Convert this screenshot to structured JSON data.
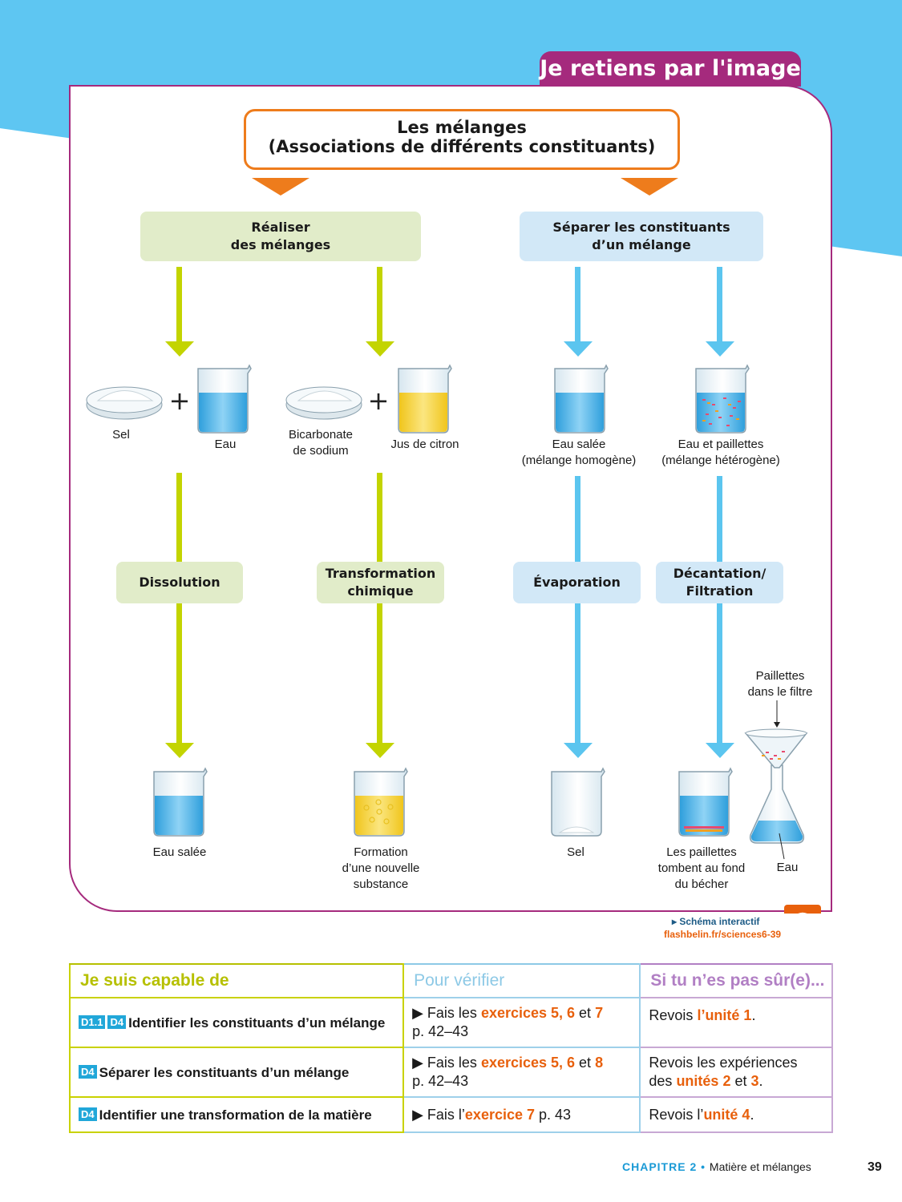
{
  "banner": "Je retiens par l'image",
  "title": {
    "line1": "Les mélanges",
    "line2": "(Associations de différents constituants)"
  },
  "left_header": "Réaliser\ndes mélanges",
  "right_header": "Séparer les constituants\nd’un mélange",
  "labels": {
    "sel": "Sel",
    "eau": "Eau",
    "bicarbonate": "Bicarbonate\nde sodium",
    "jus": "Jus de citron",
    "eau_salee_homogene": "Eau salée\n(mélange homogène)",
    "eau_paillettes": "Eau et paillettes\n(mélange hétérogène)",
    "eau_salee": "Eau salée",
    "formation": "Formation\nd’une nouvelle\nsubstance",
    "sel_result": "Sel",
    "paillettes_fond": "Les paillettes\ntombent au fond\ndu bécher",
    "paillettes_filtre": "Paillettes\ndans le filtre",
    "eau_result": "Eau"
  },
  "processes": {
    "dissolution": "Dissolution",
    "transformation": "Transformation\nchimique",
    "evaporation": "Évaporation",
    "decantation": "Décantation/\nFiltration"
  },
  "interactive": {
    "label": "▸ Schéma interactif",
    "url": "flashbelin.fr/sciences6-39"
  },
  "table": {
    "headers": [
      "Je suis capable de",
      "Pour vérifier",
      "Si tu n’es pas sûr(e)..."
    ],
    "rows": [
      {
        "tags": [
          "D1.1",
          "D4"
        ],
        "skill": "Identifier les constituants d’un mélange",
        "check_pre": "▶ Fais les ",
        "check_hl": "exercices 5, 6",
        "check_mid": " et ",
        "check_hl2": "7",
        "check_post": "p. 42–43",
        "review_pre": "Revois ",
        "review_hl": "l’unité 1",
        "review_mid": "",
        "review_hl2": "",
        "review_post": "."
      },
      {
        "tags": [
          "D4"
        ],
        "skill": "Séparer les constituants d’un mélange",
        "check_pre": "▶ Fais les ",
        "check_hl": "exercices 5, 6",
        "check_mid": " et ",
        "check_hl2": "8",
        "check_post": "p. 42–43",
        "review_pre": "Revois les expériences des ",
        "review_hl": "unités 2",
        "review_mid": " et ",
        "review_hl2": "3",
        "review_post": "."
      },
      {
        "tags": [
          "D4"
        ],
        "skill": "Identifier une transformation de la matière",
        "check_pre": "▶ Fais l’",
        "check_hl": "exercice 7",
        "check_mid": " p. 43",
        "check_hl2": "",
        "check_post": "",
        "review_pre": "Revois l’",
        "review_hl": "unité 4",
        "review_mid": "",
        "review_hl2": "",
        "review_post": "."
      }
    ]
  },
  "footer": {
    "chapter": "CHAPITRE 2",
    "sep": " • ",
    "title": "Matière et mélanges",
    "page": "39"
  },
  "colors": {
    "purple": "#a52a7d",
    "orange": "#ee7c1c",
    "green_arrow": "#c3d400",
    "blue_arrow": "#5bc5ef",
    "sky": "#5ec6f2"
  }
}
